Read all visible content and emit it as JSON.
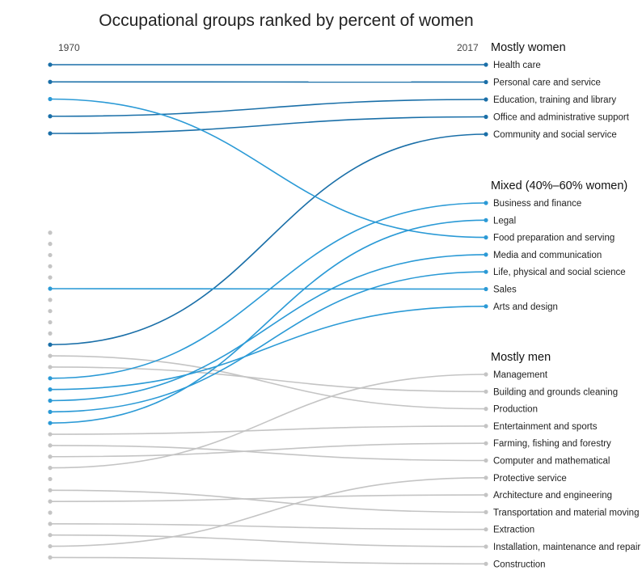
{
  "chart_data": {
    "type": "slope",
    "title": "Occupational groups ranked by percent of women",
    "x": [
      "1970",
      "2017"
    ],
    "groups": [
      {
        "label": "Mostly women",
        "start": 1,
        "end": 5
      },
      {
        "label": "Mixed (40%–60% women)",
        "start": 6,
        "end": 12
      },
      {
        "label": "Mostly men",
        "start": 13,
        "end": 24
      }
    ],
    "colors": {
      "women": "#1a6fa8",
      "mixed": "#2b9ad6",
      "men": "#c4c4c4"
    },
    "series": [
      {
        "name": "Health care",
        "rank_1970": 1,
        "rank_2017": 1,
        "group": "women"
      },
      {
        "name": "Personal care and service",
        "rank_1970": 2,
        "rank_2017": 2,
        "group": "women"
      },
      {
        "name": "Education, training and library",
        "rank_1970": 4,
        "rank_2017": 3,
        "group": "women"
      },
      {
        "name": "Office and administrative support",
        "rank_1970": 5,
        "rank_2017": 4,
        "group": "women"
      },
      {
        "name": "Community and social service",
        "rank_1970": 16,
        "rank_2017": 5,
        "group": "women"
      },
      {
        "name": "Business and finance",
        "rank_1970": 19,
        "rank_2017": 6,
        "group": "mixed"
      },
      {
        "name": "Legal",
        "rank_1970": 23,
        "rank_2017": 7,
        "group": "mixed"
      },
      {
        "name": "Food preparation and serving",
        "rank_1970": 3,
        "rank_2017": 8,
        "group": "mixed"
      },
      {
        "name": "Media and communication",
        "rank_1970": 21,
        "rank_2017": 9,
        "group": "mixed"
      },
      {
        "name": "Life, physical and social science",
        "rank_1970": 22,
        "rank_2017": 10,
        "group": "mixed"
      },
      {
        "name": "Sales",
        "rank_1970": 11,
        "rank_2017": 11,
        "group": "mixed"
      },
      {
        "name": "Arts and design",
        "rank_1970": 20,
        "rank_2017": 12,
        "group": "mixed"
      },
      {
        "name": "Management",
        "rank_1970": 27,
        "rank_2017": 13,
        "group": "men"
      },
      {
        "name": "Building and grounds cleaning",
        "rank_1970": 18,
        "rank_2017": 14,
        "group": "men"
      },
      {
        "name": "Production",
        "rank_1970": 17,
        "rank_2017": 15,
        "group": "men"
      },
      {
        "name": "Entertainment and sports",
        "rank_1970": 24,
        "rank_2017": 16,
        "group": "men"
      },
      {
        "name": "Farming, fishing and forestry",
        "rank_1970": 26,
        "rank_2017": 17,
        "group": "men"
      },
      {
        "name": "Computer and mathematical",
        "rank_1970": 25,
        "rank_2017": 18,
        "group": "men"
      },
      {
        "name": "Protective service",
        "rank_1970": 34,
        "rank_2017": 19,
        "group": "men"
      },
      {
        "name": "Architecture and engineering",
        "rank_1970": 30,
        "rank_2017": 20,
        "group": "men"
      },
      {
        "name": "Transportation and material moving",
        "rank_1970": 29,
        "rank_2017": 21,
        "group": "men"
      },
      {
        "name": "Extraction",
        "rank_1970": 32,
        "rank_2017": 22,
        "group": "men"
      },
      {
        "name": "Installation, maintenance and repair",
        "rank_1970": 33,
        "rank_2017": 23,
        "group": "men"
      },
      {
        "name": "Construction",
        "rank_1970": 35,
        "rank_2017": 24,
        "group": "men"
      }
    ]
  }
}
